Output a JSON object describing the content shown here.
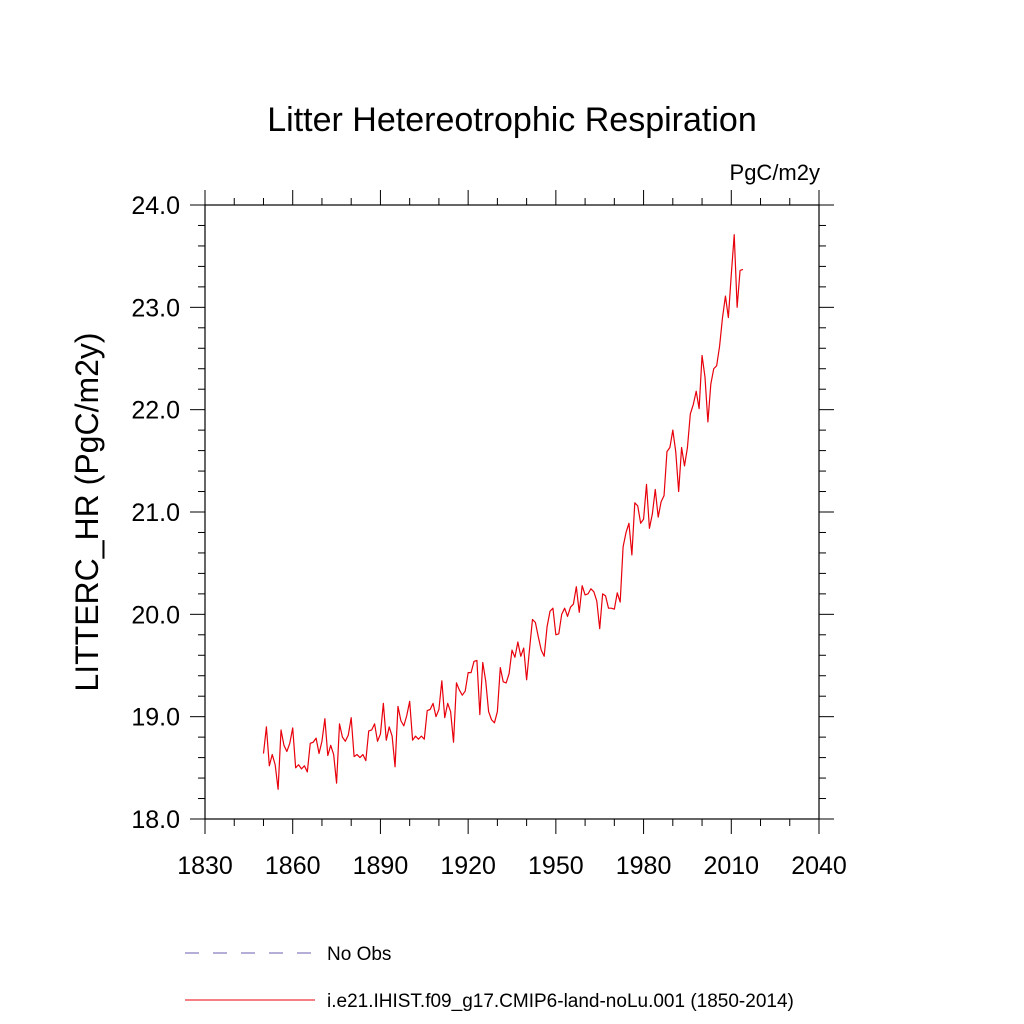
{
  "chart_data": {
    "type": "line",
    "title": "Litter Hetereotrophic Respiration",
    "units": "PgC/m2y",
    "ylabel": "LITTERC_HR  (PgC/m2y)",
    "xlabel": "",
    "xlim": [
      1830,
      2040
    ],
    "ylim": [
      18.0,
      24.0
    ],
    "x_ticks": [
      "1830",
      "1860",
      "1890",
      "1920",
      "1950",
      "1980",
      "2010",
      "2040"
    ],
    "y_ticks": [
      "18.0",
      "19.0",
      "20.0",
      "21.0",
      "22.0",
      "23.0",
      "24.0"
    ],
    "grid": false,
    "legend_position": "bottom",
    "series": [
      {
        "name": "No Obs",
        "color": "#6b5fb0",
        "dash": "dashed",
        "x": [],
        "values": []
      },
      {
        "name": "i.e21.IHIST.f09_g17.CMIP6-land-noLu.001 (1850-2014)",
        "color": "#e8000b",
        "dash": "solid",
        "x": [
          1850,
          1851,
          1852,
          1853,
          1854,
          1855,
          1856,
          1857,
          1858,
          1859,
          1860,
          1861,
          1862,
          1863,
          1864,
          1865,
          1866,
          1867,
          1868,
          1869,
          1870,
          1871,
          1872,
          1873,
          1874,
          1875,
          1876,
          1877,
          1878,
          1879,
          1880,
          1881,
          1882,
          1883,
          1884,
          1885,
          1886,
          1887,
          1888,
          1889,
          1890,
          1891,
          1892,
          1893,
          1894,
          1895,
          1896,
          1897,
          1898,
          1899,
          1900,
          1901,
          1902,
          1903,
          1904,
          1905,
          1906,
          1907,
          1908,
          1909,
          1910,
          1911,
          1912,
          1913,
          1914,
          1915,
          1916,
          1917,
          1918,
          1919,
          1920,
          1921,
          1922,
          1923,
          1924,
          1925,
          1926,
          1927,
          1928,
          1929,
          1930,
          1931,
          1932,
          1933,
          1934,
          1935,
          1936,
          1937,
          1938,
          1939,
          1940,
          1941,
          1942,
          1943,
          1944,
          1945,
          1946,
          1947,
          1948,
          1949,
          1950,
          1951,
          1952,
          1953,
          1954,
          1955,
          1956,
          1957,
          1958,
          1959,
          1960,
          1961,
          1962,
          1963,
          1964,
          1965,
          1966,
          1967,
          1968,
          1969,
          1970,
          1971,
          1972,
          1973,
          1974,
          1975,
          1976,
          1977,
          1978,
          1979,
          1980,
          1981,
          1982,
          1983,
          1984,
          1985,
          1986,
          1987,
          1988,
          1989,
          1990,
          1991,
          1992,
          1993,
          1994,
          1995,
          1996,
          1997,
          1998,
          1999,
          2000,
          2001,
          2002,
          2003,
          2004,
          2005,
          2006,
          2007,
          2008,
          2009,
          2010,
          2011,
          2012,
          2013,
          2014
        ],
        "values": [
          18.64,
          18.9,
          18.52,
          18.63,
          18.53,
          18.29,
          18.87,
          18.72,
          18.66,
          18.74,
          18.89,
          18.5,
          18.53,
          18.49,
          18.52,
          18.46,
          18.74,
          18.75,
          18.79,
          18.64,
          18.76,
          18.98,
          18.62,
          18.72,
          18.63,
          18.35,
          18.93,
          18.8,
          18.76,
          18.82,
          18.99,
          18.61,
          18.63,
          18.6,
          18.63,
          18.57,
          18.86,
          18.87,
          18.93,
          18.76,
          18.83,
          19.13,
          18.77,
          18.9,
          18.81,
          18.51,
          19.1,
          18.96,
          18.91,
          19.01,
          19.15,
          18.77,
          18.81,
          18.78,
          18.81,
          18.78,
          19.06,
          19.07,
          19.13,
          19.0,
          19.07,
          19.35,
          18.99,
          19.13,
          19.05,
          18.75,
          19.33,
          19.26,
          19.21,
          19.25,
          19.43,
          19.43,
          19.54,
          19.55,
          19.02,
          19.53,
          19.35,
          19.05,
          18.97,
          18.94,
          19.05,
          19.48,
          19.34,
          19.33,
          19.42,
          19.65,
          19.58,
          19.73,
          19.59,
          19.67,
          19.36,
          19.66,
          19.95,
          19.92,
          19.78,
          19.65,
          19.59,
          19.88,
          20.03,
          20.06,
          19.8,
          19.81,
          20.0,
          20.06,
          19.98,
          20.07,
          20.1,
          20.27,
          20.02,
          20.28,
          20.19,
          20.2,
          20.25,
          20.22,
          20.13,
          19.86,
          20.2,
          20.18,
          20.06,
          20.06,
          20.05,
          20.21,
          20.12,
          20.66,
          20.8,
          20.89,
          20.58,
          21.09,
          21.06,
          20.89,
          20.93,
          21.27,
          20.84,
          20.98,
          21.22,
          20.95,
          21.1,
          21.16,
          21.59,
          21.63,
          21.8,
          21.59,
          21.2,
          21.63,
          21.45,
          21.63,
          21.96,
          22.05,
          22.18,
          22.01,
          22.53,
          22.32,
          21.88,
          22.25,
          22.4,
          22.43,
          22.62,
          22.9,
          23.11,
          22.9,
          23.32,
          23.71,
          23.0,
          23.36,
          23.37
        ]
      }
    ]
  }
}
